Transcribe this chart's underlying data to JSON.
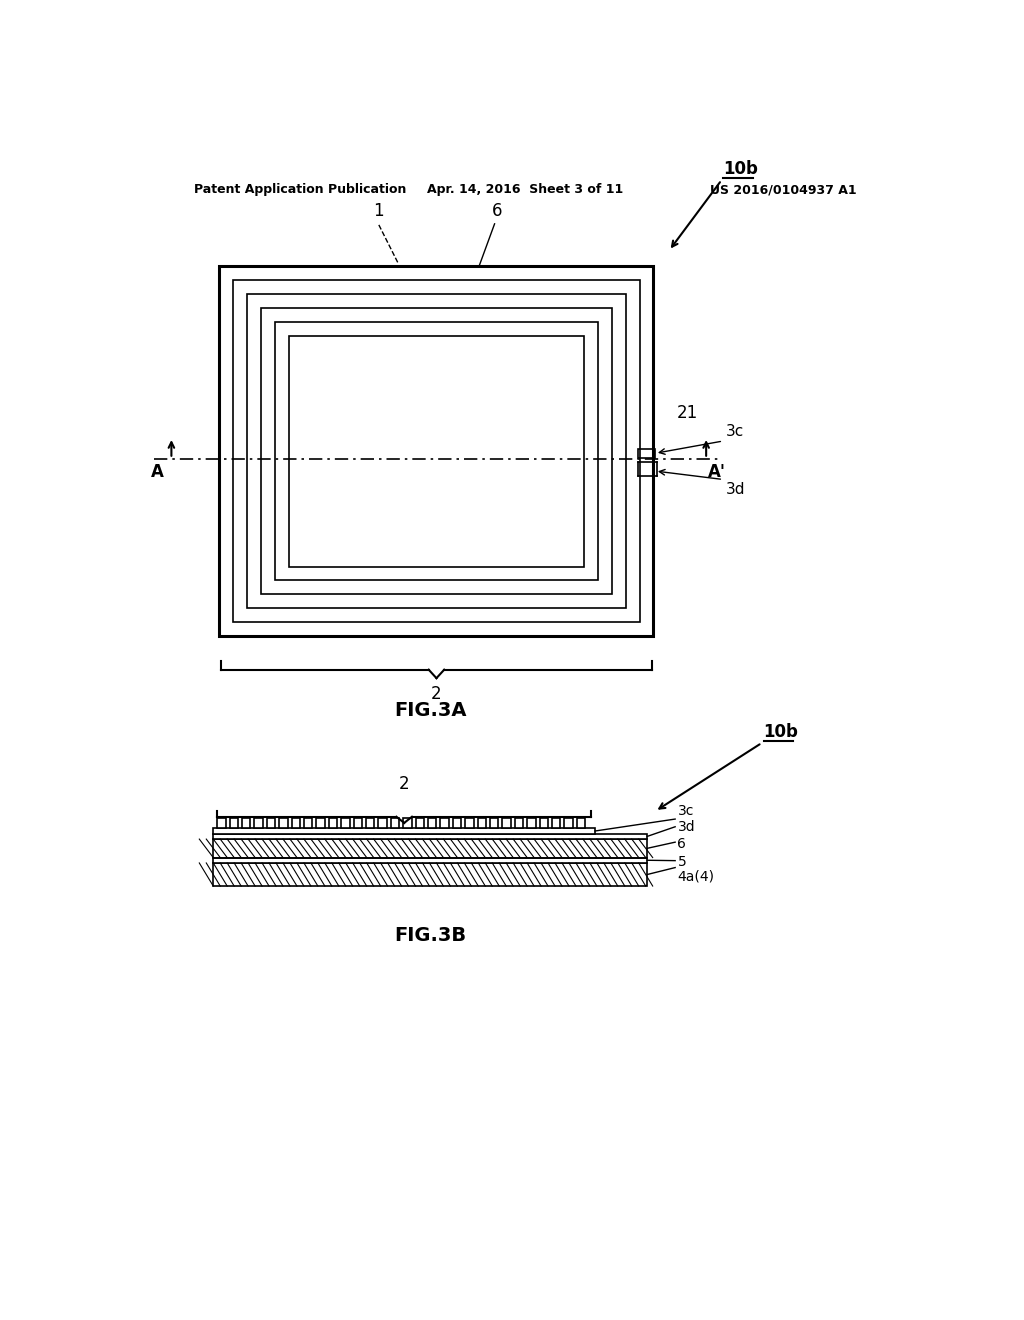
{
  "bg_color": "#ffffff",
  "line_color": "#000000",
  "header_left": "Patent Application Publication",
  "header_center": "Apr. 14, 2016  Sheet 3 of 11",
  "header_right": "US 2016/0104937 A1",
  "fig3a_label": "FIG.3A",
  "fig3b_label": "FIG.3B",
  "label_10b_top": "10b",
  "label_10b_bot": "10b",
  "label_1": "1",
  "label_2_top": "2",
  "label_2_bot": "2",
  "label_6_top": "6",
  "label_21": "21",
  "label_3c": "3c",
  "label_3d": "3d",
  "label_A": "A",
  "label_Ap": "A'",
  "label_3c_bot": "3c",
  "label_3d_bot": "3d",
  "label_6_bot": "6",
  "label_5": "5",
  "label_4a4": "4a(4)"
}
